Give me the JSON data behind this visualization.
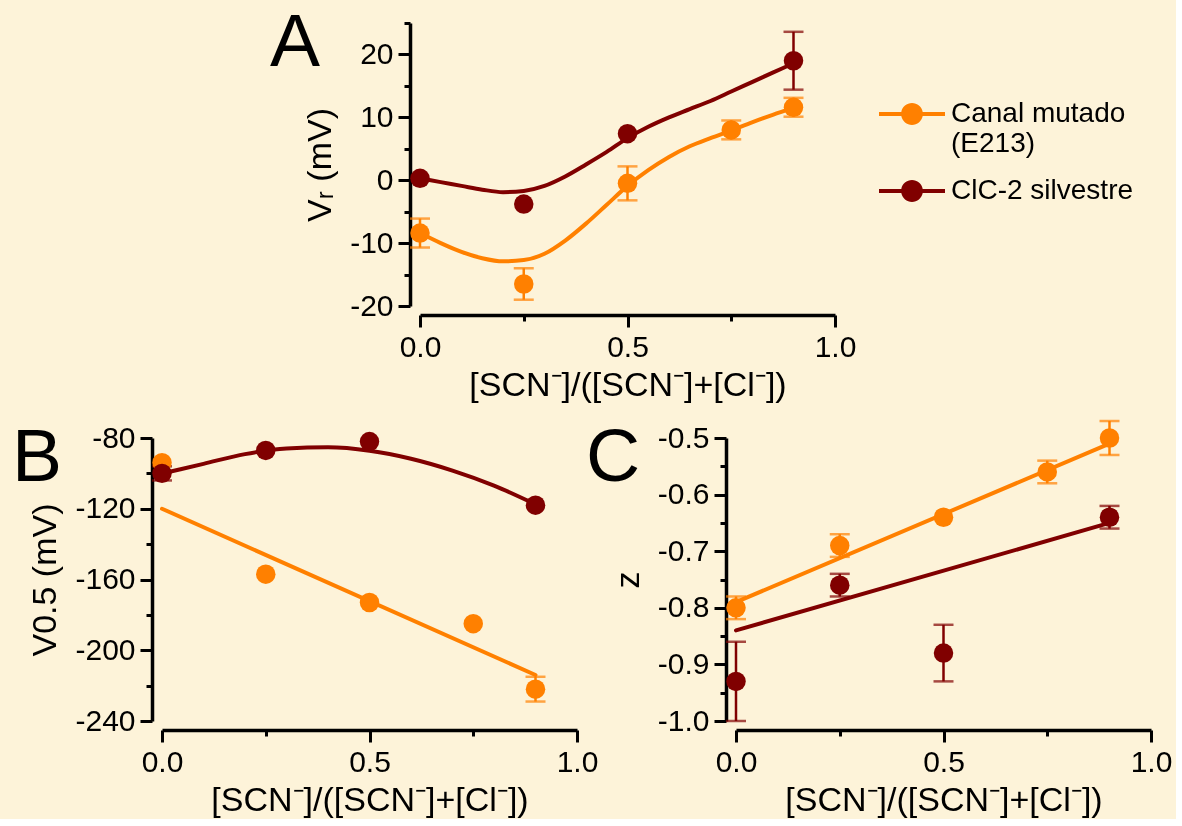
{
  "chart_data": [
    {
      "type": "scatter",
      "title": "A",
      "xlabel": "[SCN⁻]/([SCN⁻]+[Cl⁻])",
      "ylabel": "Vᵣ (mV)",
      "xlim": [
        0,
        1
      ],
      "xticks": [
        {
          "value": 0,
          "label": "0.0"
        },
        {
          "value": 0.25,
          "label": null
        },
        {
          "value": 0.5,
          "label": "0.5"
        },
        {
          "value": 0.75,
          "label": null
        },
        {
          "value": 1,
          "label": "1.0"
        }
      ],
      "ylim": [
        -20,
        25
      ],
      "yticks": [
        -20,
        {
          "value": -15,
          "label": null
        },
        -10,
        {
          "value": -5,
          "label": null
        },
        0,
        {
          "value": 5,
          "label": null
        },
        10,
        {
          "value": 15,
          "label": null
        },
        20,
        {
          "value": 25,
          "label": null
        }
      ],
      "marker": "circle",
      "legend": "right",
      "series": [
        {
          "type": "line",
          "marker": "none",
          "color": "#ff8000",
          "x": [
            0,
            0.05,
            0.1,
            0.15,
            0.2,
            0.25,
            0.3,
            0.35,
            0.4,
            0.45,
            0.5,
            0.55,
            0.6,
            0.65,
            0.7,
            0.75,
            0.8,
            0.85,
            0.9
          ],
          "values": [
            -8.4,
            -10.0,
            -11.4,
            -12.4,
            -12.9,
            -12.7,
            -11.7,
            -9.6,
            -6.9,
            -3.9,
            -0.9,
            1.6,
            3.7,
            5.4,
            6.7,
            7.9,
            9.2,
            10.4,
            11.5
          ]
        },
        {
          "type": "line",
          "marker": "none",
          "color": "#800000",
          "x": [
            0,
            0.05,
            0.1,
            0.15,
            0.2,
            0.25,
            0.3,
            0.35,
            0.4,
            0.45,
            0.5,
            0.55,
            0.6,
            0.65,
            0.7,
            0.75,
            0.8,
            0.85,
            0.9
          ],
          "values": [
            0.3,
            -0.3,
            -0.9,
            -1.5,
            -1.9,
            -1.7,
            -0.9,
            0.6,
            2.5,
            4.5,
            6.7,
            8.5,
            10.0,
            11.3,
            12.6,
            14.1,
            15.6,
            17.1,
            18.6
          ]
        },
        {
          "name": "Canal mutado (E213)",
          "color": "#ff8000",
          "x": [
            0,
            0.25,
            0.5,
            0.75,
            0.9
          ],
          "values": [
            -8.4,
            -16.5,
            -0.5,
            8.0,
            11.6
          ],
          "errors": [
            2.3,
            2.5,
            2.7,
            1.5,
            1.5
          ]
        },
        {
          "name": "ClC-2 silvestre",
          "color": "#800000",
          "x": [
            0,
            0.25,
            0.5,
            0.9
          ],
          "values": [
            0.3,
            -3.8,
            7.4,
            19.0
          ],
          "errors": [
            null,
            null,
            null,
            4.6
          ]
        }
      ]
    },
    {
      "type": "scatter",
      "title": "B",
      "xlabel": "[SCN⁻]/([SCN⁻]+[Cl⁻])",
      "ylabel": "V0.5 (mV)",
      "xlim": [
        0,
        1
      ],
      "xticks": [
        {
          "value": 0,
          "label": "0.0"
        },
        {
          "value": 0.25,
          "label": null
        },
        {
          "value": 0.5,
          "label": "0.5"
        },
        {
          "value": 0.75,
          "label": null
        },
        {
          "value": 1,
          "label": "1.0"
        }
      ],
      "ylim": [
        -240,
        -80
      ],
      "yticks": [
        -240,
        {
          "value": -220,
          "label": null
        },
        -200,
        {
          "value": -180,
          "label": null
        },
        -160,
        {
          "value": -140,
          "label": null
        },
        -120,
        {
          "value": -100,
          "label": null
        },
        -80
      ],
      "marker": "circle",
      "series": [
        {
          "type": "line",
          "marker": "none",
          "color": "#ff8000",
          "x": [
            0,
            0.9
          ],
          "values": [
            -120,
            -214
          ]
        },
        {
          "type": "line",
          "marker": "none",
          "color": "#800000",
          "x": [
            0,
            0.1,
            0.2,
            0.3,
            0.4,
            0.5,
            0.6,
            0.7,
            0.8,
            0.9
          ],
          "values": [
            -100.1,
            -94.6,
            -89.1,
            -85.9,
            -85.3,
            -87.2,
            -91.7,
            -98.4,
            -106.9,
            -117.5
          ]
        },
        {
          "color": "#ff8000",
          "x": [
            0,
            0.25,
            0.5,
            0.75,
            0.9
          ],
          "values": [
            -94,
            -157,
            -173,
            -185,
            -222
          ],
          "errors": [
            null,
            null,
            null,
            null,
            7
          ]
        },
        {
          "color": "#800000",
          "x": [
            0,
            0.25,
            0.5,
            0.9
          ],
          "values": [
            -100,
            -87,
            -82,
            -118
          ],
          "errors": [
            4,
            null,
            null,
            null
          ]
        }
      ]
    },
    {
      "type": "scatter",
      "title": "C",
      "xlabel": "[SCN⁻]/([SCN⁻]+[Cl⁻])",
      "ylabel": "z",
      "xlim": [
        0,
        1
      ],
      "xticks": [
        {
          "value": 0,
          "label": "0.0"
        },
        {
          "value": 0.25,
          "label": null
        },
        {
          "value": 0.5,
          "label": "0.5"
        },
        {
          "value": 0.75,
          "label": null
        },
        {
          "value": 1,
          "label": "1.0"
        }
      ],
      "ylim": [
        -1.0,
        -0.5
      ],
      "yticks": [
        {
          "value": -1.0,
          "label": "-1.0"
        },
        {
          "value": -0.95,
          "label": null
        },
        -0.9,
        {
          "value": -0.85,
          "label": null
        },
        -0.8,
        {
          "value": -0.75,
          "label": null
        },
        -0.7,
        {
          "value": -0.65,
          "label": null
        },
        -0.6,
        {
          "value": -0.55,
          "label": null
        },
        -0.5
      ],
      "marker": "circle",
      "series": [
        {
          "type": "line",
          "marker": "none",
          "color": "#ff8000",
          "x": [
            0,
            0.9
          ],
          "values": [
            -0.79,
            -0.51
          ]
        },
        {
          "type": "line",
          "marker": "none",
          "color": "#800000",
          "x": [
            0,
            0.9
          ],
          "values": [
            -0.84,
            -0.65
          ]
        },
        {
          "color": "#ff8000",
          "x": [
            0,
            0.25,
            0.5,
            0.75,
            0.9
          ],
          "values": [
            -0.8,
            -0.69,
            -0.64,
            -0.56,
            -0.5
          ],
          "errors": [
            0.02,
            0.02,
            null,
            0.02,
            0.03
          ]
        },
        {
          "color": "#800000",
          "x": [
            0,
            0.25,
            0.5,
            0.9
          ],
          "values": [
            -0.93,
            -0.76,
            -0.88,
            -0.64
          ],
          "errors": [
            0.07,
            0.02,
            0.05,
            0.02
          ]
        }
      ]
    }
  ]
}
